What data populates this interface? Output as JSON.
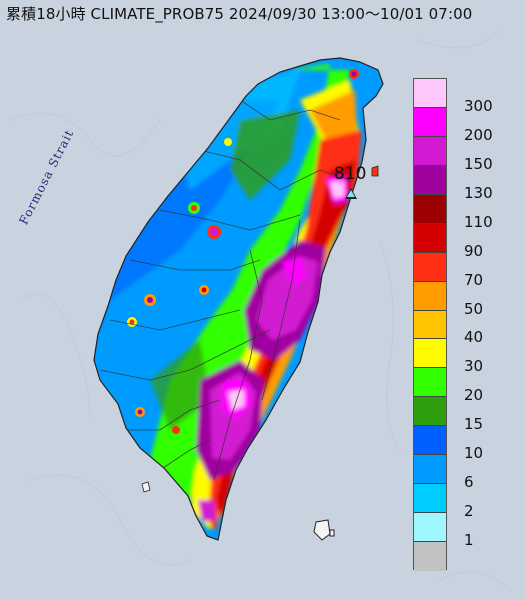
{
  "title": "累積18小時 CLIMATE_PROB75 2024/09/30 13:00～10/01 07:00",
  "sea_label": "Formosa Strait",
  "max_point": {
    "value": "810",
    "color": "#7fe3ff"
  },
  "legend": {
    "levels": [
      {
        "label": "300",
        "color": "#ffc8fa"
      },
      {
        "label": "200",
        "color": "#ff00ff"
      },
      {
        "label": "150",
        "color": "#d21ad2"
      },
      {
        "label": "130",
        "color": "#9f039f"
      },
      {
        "label": "110",
        "color": "#9c0000"
      },
      {
        "label": "90",
        "color": "#d40000"
      },
      {
        "label": "70",
        "color": "#ff2f16"
      },
      {
        "label": "50",
        "color": "#ff9d00"
      },
      {
        "label": "40",
        "color": "#ffc400"
      },
      {
        "label": "30",
        "color": "#fffa00"
      },
      {
        "label": "20",
        "color": "#32ff00"
      },
      {
        "label": "15",
        "color": "#2f9e0f"
      },
      {
        "label": "10",
        "color": "#005fff"
      },
      {
        "label": "6",
        "color": "#009bff"
      },
      {
        "label": "2",
        "color": "#00cdfd"
      },
      {
        "label": "1",
        "color": "#9ff7ff"
      },
      {
        "label": "",
        "color": "#c1c1c1"
      }
    ]
  },
  "colors": {
    "sea": "#c9d3df",
    "land_outline": "#222222",
    "county_border": "#333333"
  }
}
